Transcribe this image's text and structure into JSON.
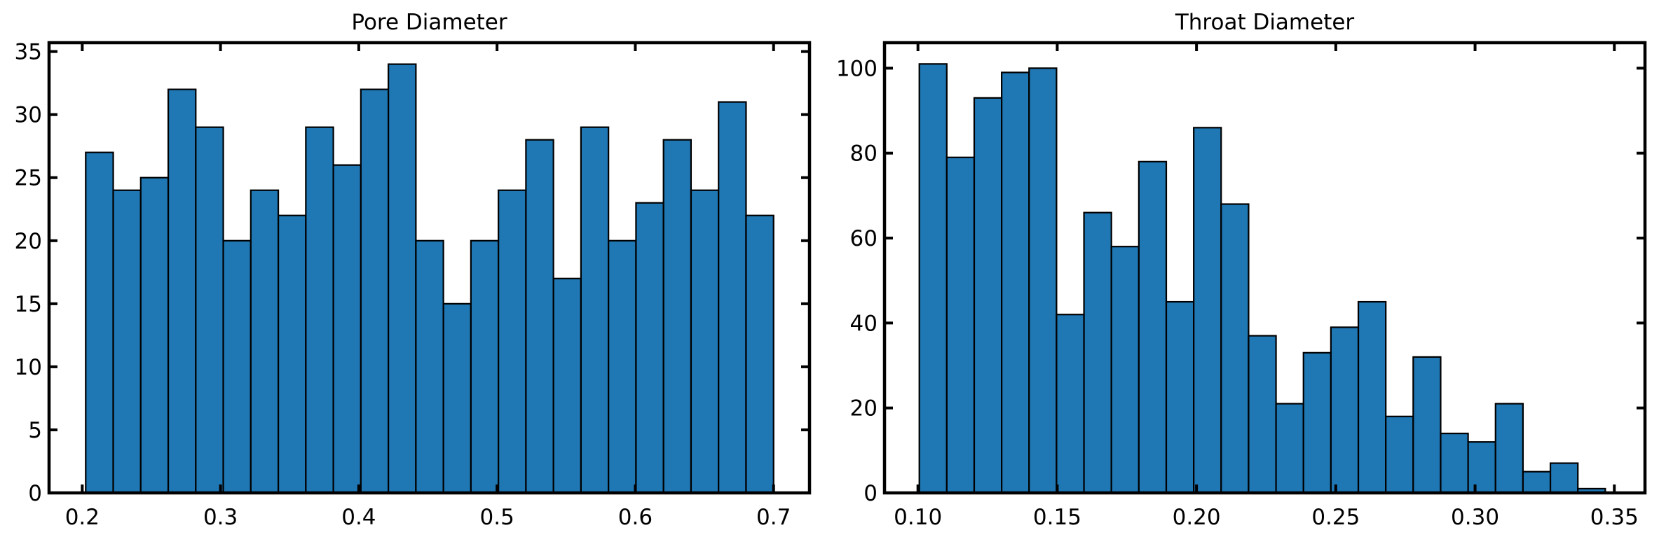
{
  "chart_data": [
    {
      "type": "bar",
      "title": "Pore Diameter",
      "xlabel": "",
      "ylabel": "",
      "bar_color": "#1f77b4",
      "edge_color": "#000000",
      "xlim": [
        0.176,
        0.726
      ],
      "ylim": [
        0,
        35.7
      ],
      "xticks": [
        0.2,
        0.3,
        0.4,
        0.5,
        0.6,
        0.7
      ],
      "xtick_labels": [
        "0.2",
        "0.3",
        "0.4",
        "0.5",
        "0.6",
        "0.7"
      ],
      "yticks": [
        0,
        5,
        10,
        15,
        20,
        25,
        30,
        35
      ],
      "ytick_labels": [
        "0",
        "5",
        "10",
        "15",
        "20",
        "25",
        "30",
        "35"
      ],
      "bin_start": 0.2025,
      "bin_width": 0.0199,
      "values": [
        27,
        24,
        25,
        32,
        29,
        20,
        24,
        22,
        29,
        26,
        32,
        34,
        20,
        15,
        20,
        24,
        28,
        17,
        29,
        20,
        23,
        28,
        24,
        31,
        22
      ]
    },
    {
      "type": "bar",
      "title": "Throat Diameter",
      "xlabel": "",
      "ylabel": "",
      "bar_color": "#1f77b4",
      "edge_color": "#000000",
      "xlim": [
        0.088,
        0.361
      ],
      "ylim": [
        0,
        106
      ],
      "xticks": [
        0.1,
        0.15,
        0.2,
        0.25,
        0.3,
        0.35
      ],
      "xtick_labels": [
        "0.10",
        "0.15",
        "0.20",
        "0.25",
        "0.30",
        "0.35"
      ],
      "yticks": [
        0,
        20,
        40,
        60,
        80,
        100
      ],
      "ytick_labels": [
        "0",
        "20",
        "40",
        "60",
        "80",
        "100"
      ],
      "bin_start": 0.1005,
      "bin_width": 0.00985,
      "values": [
        101,
        79,
        93,
        99,
        100,
        42,
        66,
        58,
        78,
        45,
        86,
        68,
        37,
        21,
        33,
        39,
        45,
        18,
        32,
        14,
        12,
        21,
        5,
        7,
        1
      ]
    }
  ]
}
